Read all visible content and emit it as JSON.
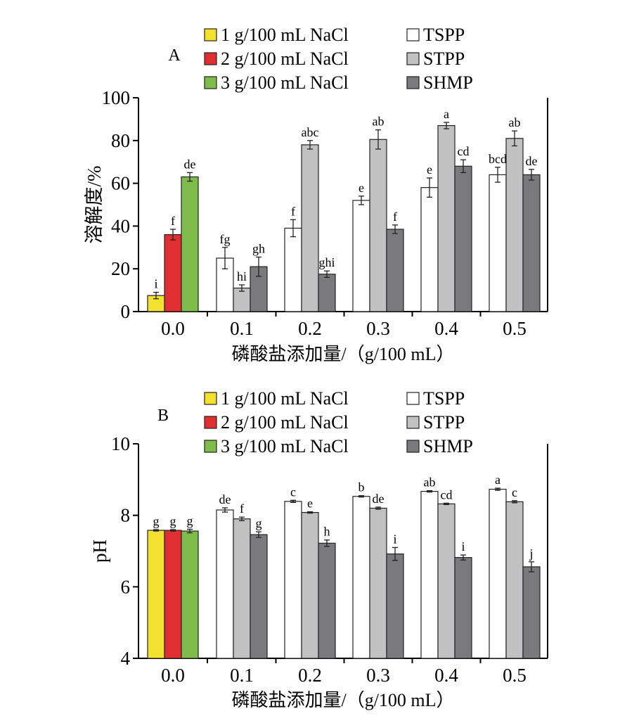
{
  "chart_data": [
    {
      "type": "bar",
      "panel_label": "A",
      "xlabel": "磷酸盐添加量/（g/100 mL）",
      "ylabel": "溶解度/%",
      "ylim": [
        0,
        100
      ],
      "yticks": [
        "0",
        "20",
        "40",
        "60",
        "80",
        "100"
      ],
      "categories": [
        "0.0",
        "0.1",
        "0.2",
        "0.3",
        "0.4",
        "0.5"
      ],
      "legend": [
        {
          "name": "1 g/100 mL NaCl",
          "color": "#f2e12e"
        },
        {
          "name": "2 g/100 mL NaCl",
          "color": "#e02f30"
        },
        {
          "name": "3 g/100 mL NaCl",
          "color": "#7fbc4c"
        },
        {
          "name": "TSPP",
          "color": "#ffffff"
        },
        {
          "name": "STPP",
          "color": "#c1c1c1"
        },
        {
          "name": "SHMP",
          "color": "#7a7a7c"
        }
      ],
      "bars": [
        {
          "category": "0.0",
          "series": "1 g/100 mL NaCl",
          "color": "#f2e12e",
          "value": 7.5,
          "error": 1.5,
          "label": "i"
        },
        {
          "category": "0.0",
          "series": "2 g/100 mL NaCl",
          "color": "#e02f30",
          "value": 36,
          "error": 2.5,
          "label": "f"
        },
        {
          "category": "0.0",
          "series": "3 g/100 mL NaCl",
          "color": "#7fbc4c",
          "value": 63,
          "error": 2,
          "label": "de"
        },
        {
          "category": "0.1",
          "series": "TSPP",
          "color": "#ffffff",
          "value": 25,
          "error": 5,
          "label": "fg"
        },
        {
          "category": "0.1",
          "series": "STPP",
          "color": "#c1c1c1",
          "value": 11,
          "error": 1.5,
          "label": "hi"
        },
        {
          "category": "0.1",
          "series": "SHMP",
          "color": "#7a7a7c",
          "value": 21,
          "error": 4.5,
          "label": "gh"
        },
        {
          "category": "0.2",
          "series": "TSPP",
          "color": "#ffffff",
          "value": 39,
          "error": 4,
          "label": "f"
        },
        {
          "category": "0.2",
          "series": "STPP",
          "color": "#c1c1c1",
          "value": 78,
          "error": 2,
          "label": "abc"
        },
        {
          "category": "0.2",
          "series": "SHMP",
          "color": "#7a7a7c",
          "value": 17.5,
          "error": 1.5,
          "label": "ghi"
        },
        {
          "category": "0.3",
          "series": "TSPP",
          "color": "#ffffff",
          "value": 52,
          "error": 2,
          "label": "e"
        },
        {
          "category": "0.3",
          "series": "STPP",
          "color": "#c1c1c1",
          "value": 80.5,
          "error": 4.5,
          "label": "ab"
        },
        {
          "category": "0.3",
          "series": "SHMP",
          "color": "#7a7a7c",
          "value": 38.5,
          "error": 2,
          "label": "f"
        },
        {
          "category": "0.4",
          "series": "TSPP",
          "color": "#ffffff",
          "value": 58,
          "error": 4.5,
          "label": "e"
        },
        {
          "category": "0.4",
          "series": "STPP",
          "color": "#c1c1c1",
          "value": 87,
          "error": 1.5,
          "label": "a"
        },
        {
          "category": "0.4",
          "series": "SHMP",
          "color": "#7a7a7c",
          "value": 68,
          "error": 3,
          "label": "cd"
        },
        {
          "category": "0.5",
          "series": "TSPP",
          "color": "#ffffff",
          "value": 64,
          "error": 3.5,
          "label": "bcd"
        },
        {
          "category": "0.5",
          "series": "STPP",
          "color": "#c1c1c1",
          "value": 81,
          "error": 3.5,
          "label": "ab"
        },
        {
          "category": "0.5",
          "series": "SHMP",
          "color": "#7a7a7c",
          "value": 64,
          "error": 2.5,
          "label": "de"
        }
      ]
    },
    {
      "type": "bar",
      "panel_label": "B",
      "xlabel": "磷酸盐添加量/（g/100 mL）",
      "ylabel": "pH",
      "ylim": [
        4,
        10
      ],
      "yticks": [
        "4",
        "6",
        "8",
        "10"
      ],
      "categories": [
        "0.0",
        "0.1",
        "0.2",
        "0.3",
        "0.4",
        "0.5"
      ],
      "legend": [
        {
          "name": "1 g/100 mL NaCl",
          "color": "#f2e12e"
        },
        {
          "name": "2 g/100 mL NaCl",
          "color": "#e02f30"
        },
        {
          "name": "3 g/100 mL NaCl",
          "color": "#7fbc4c"
        },
        {
          "name": "TSPP",
          "color": "#ffffff"
        },
        {
          "name": "STPP",
          "color": "#c1c1c1"
        },
        {
          "name": "SHMP",
          "color": "#7a7a7c"
        }
      ],
      "bars": [
        {
          "category": "0.0",
          "series": "1 g/100 mL NaCl",
          "color": "#f2e12e",
          "value": 7.58,
          "error": 0.02,
          "label": "g"
        },
        {
          "category": "0.0",
          "series": "2 g/100 mL NaCl",
          "color": "#e02f30",
          "value": 7.58,
          "error": 0.02,
          "label": "g"
        },
        {
          "category": "0.0",
          "series": "3 g/100 mL NaCl",
          "color": "#7fbc4c",
          "value": 7.56,
          "error": 0.05,
          "label": "g"
        },
        {
          "category": "0.1",
          "series": "TSPP",
          "color": "#ffffff",
          "value": 8.15,
          "error": 0.06,
          "label": "de"
        },
        {
          "category": "0.1",
          "series": "STPP",
          "color": "#c1c1c1",
          "value": 7.9,
          "error": 0.05,
          "label": "f"
        },
        {
          "category": "0.1",
          "series": "SHMP",
          "color": "#7a7a7c",
          "value": 7.46,
          "error": 0.08,
          "label": "g"
        },
        {
          "category": "0.2",
          "series": "TSPP",
          "color": "#ffffff",
          "value": 8.39,
          "error": 0.03,
          "label": "c"
        },
        {
          "category": "0.2",
          "series": "STPP",
          "color": "#c1c1c1",
          "value": 8.08,
          "error": 0.02,
          "label": "e"
        },
        {
          "category": "0.2",
          "series": "SHMP",
          "color": "#7a7a7c",
          "value": 7.22,
          "error": 0.09,
          "label": "h"
        },
        {
          "category": "0.3",
          "series": "TSPP",
          "color": "#ffffff",
          "value": 8.53,
          "error": 0.02,
          "label": "b"
        },
        {
          "category": "0.3",
          "series": "STPP",
          "color": "#c1c1c1",
          "value": 8.2,
          "error": 0.03,
          "label": "de"
        },
        {
          "category": "0.3",
          "series": "SHMP",
          "color": "#7a7a7c",
          "value": 6.92,
          "error": 0.18,
          "label": "i"
        },
        {
          "category": "0.4",
          "series": "TSPP",
          "color": "#ffffff",
          "value": 8.67,
          "error": 0.02,
          "label": "ab"
        },
        {
          "category": "0.4",
          "series": "STPP",
          "color": "#c1c1c1",
          "value": 8.32,
          "error": 0.02,
          "label": "cd"
        },
        {
          "category": "0.4",
          "series": "SHMP",
          "color": "#7a7a7c",
          "value": 6.82,
          "error": 0.07,
          "label": "i"
        },
        {
          "category": "0.5",
          "series": "TSPP",
          "color": "#ffffff",
          "value": 8.73,
          "error": 0.03,
          "label": "a"
        },
        {
          "category": "0.5",
          "series": "STPP",
          "color": "#c1c1c1",
          "value": 8.38,
          "error": 0.03,
          "label": "c"
        },
        {
          "category": "0.5",
          "series": "SHMP",
          "color": "#7a7a7c",
          "value": 6.56,
          "error": 0.14,
          "label": "j"
        }
      ]
    }
  ]
}
